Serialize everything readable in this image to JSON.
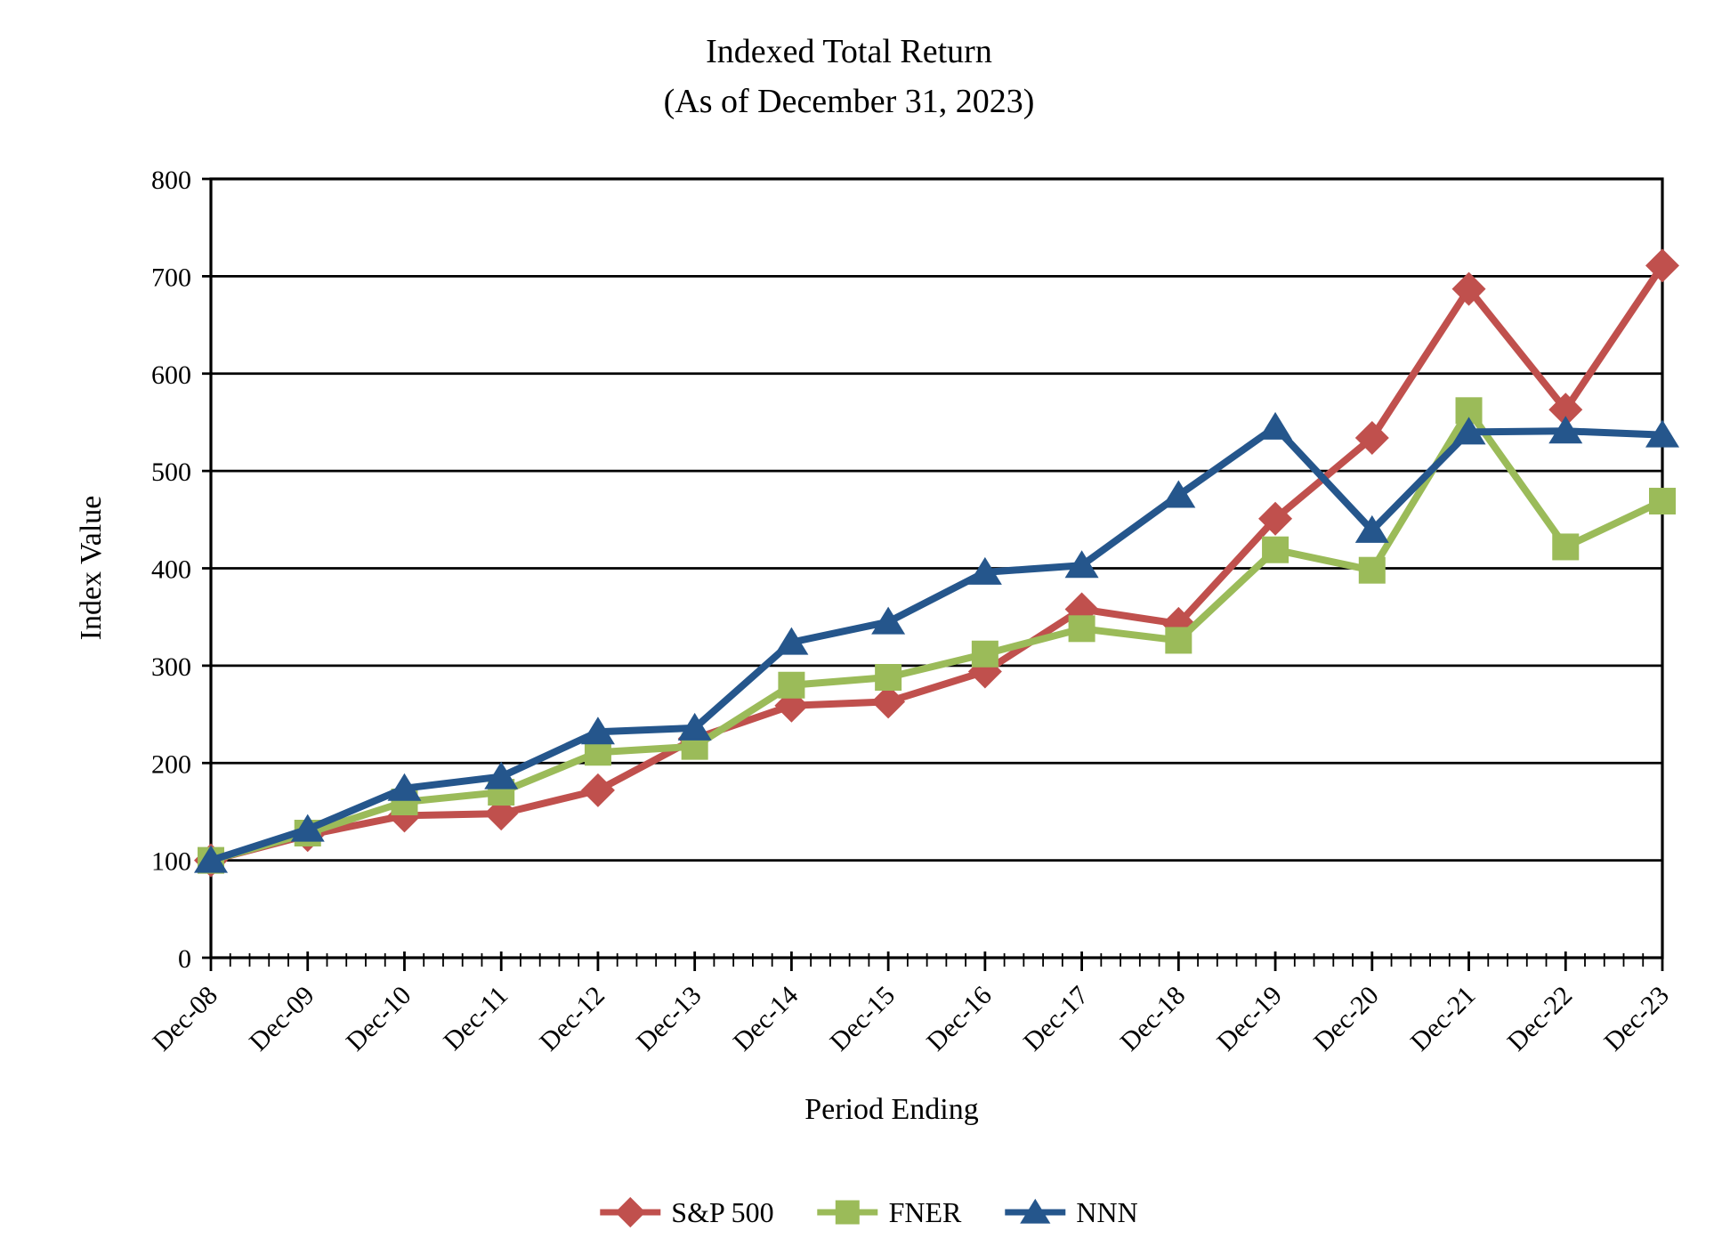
{
  "title": {
    "line1": "Indexed Total Return",
    "line2": "(As of December 31, 2023)"
  },
  "y_axis": {
    "title": "Index Value",
    "ticks": [
      "0",
      "100",
      "200",
      "300",
      "400",
      "500",
      "600",
      "700",
      "800"
    ]
  },
  "x_axis": {
    "title": "Period Ending"
  },
  "legend": {
    "items": [
      "S&P 500",
      "FNER",
      "NNN"
    ]
  },
  "chart_data": {
    "type": "line",
    "title": "Indexed Total Return (As of December 31, 2023)",
    "xlabel": "Period Ending",
    "ylabel": "Index Value",
    "ylim": [
      0,
      800
    ],
    "ytick_step": 100,
    "grid": true,
    "legend_position": "bottom",
    "categories": [
      "Dec-08",
      "Dec-09",
      "Dec-10",
      "Dec-11",
      "Dec-12",
      "Dec-13",
      "Dec-14",
      "Dec-15",
      "Dec-16",
      "Dec-17",
      "Dec-18",
      "Dec-19",
      "Dec-20",
      "Dec-21",
      "Dec-22",
      "Dec-23"
    ],
    "series": [
      {
        "name": "S&P 500",
        "color": "#C0504D",
        "marker": "diamond",
        "values": [
          100,
          126,
          146,
          148,
          172,
          225,
          259,
          263,
          294,
          358,
          343,
          451,
          534,
          687,
          563,
          711
        ]
      },
      {
        "name": "FNER",
        "color": "#9BBB59",
        "marker": "square",
        "values": [
          100,
          128,
          160,
          170,
          211,
          217,
          280,
          288,
          312,
          338,
          326,
          419,
          398,
          562,
          422,
          469
        ]
      },
      {
        "name": "NNN",
        "color": "#25568C",
        "marker": "triangle",
        "values": [
          100,
          132,
          174,
          186,
          232,
          236,
          324,
          345,
          396,
          403,
          475,
          545,
          439,
          540,
          541,
          537
        ]
      }
    ]
  }
}
